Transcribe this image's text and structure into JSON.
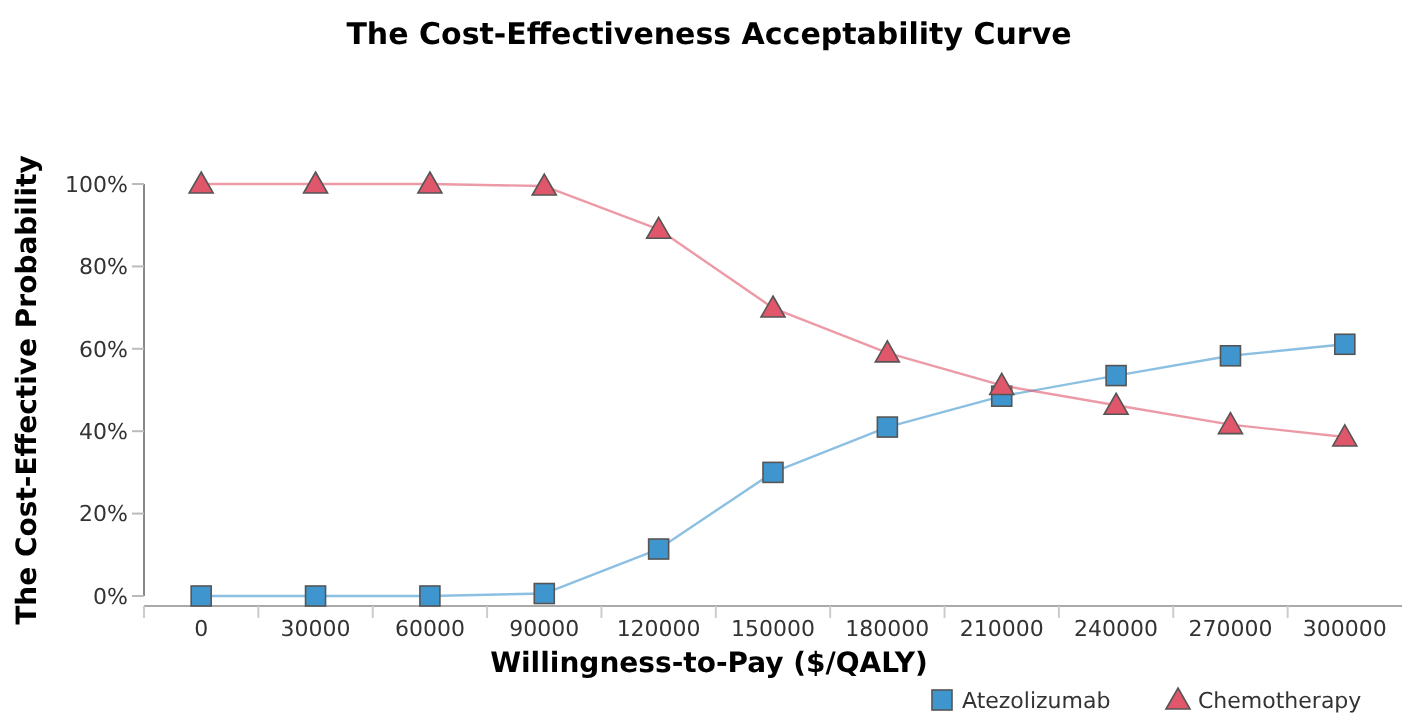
{
  "chart_data": {
    "type": "line",
    "title": "The Cost-Effectiveness Acceptability Curve",
    "xlabel": "Willingness-to-Pay ($/QALY)",
    "ylabel": "The Cost-Effective Probability",
    "categories": [
      "0",
      "30000",
      "60000",
      "90000",
      "120000",
      "150000",
      "180000",
      "210000",
      "240000",
      "270000",
      "300000"
    ],
    "ylim": [
      0,
      100
    ],
    "yticks": [
      {
        "value": 0,
        "label": "0%"
      },
      {
        "value": 20,
        "label": "20%"
      },
      {
        "value": 40,
        "label": "40%"
      },
      {
        "value": 60,
        "label": "60%"
      },
      {
        "value": 80,
        "label": "80%"
      },
      {
        "value": 100,
        "label": "100%"
      }
    ],
    "series": [
      {
        "name": "Atezolizumab",
        "color": "#3f96cf",
        "marker": "square",
        "values": [
          0,
          0,
          0,
          0.6,
          11.4,
          30,
          41,
          48.5,
          53.5,
          58.3,
          61.1
        ]
      },
      {
        "name": "Chemotherapy",
        "color": "#e0566a",
        "marker": "triangle",
        "values": [
          100,
          100,
          100,
          99.5,
          89,
          69.9,
          59,
          51.1,
          46.3,
          41.6,
          38.6
        ]
      }
    ],
    "legend": "bottom right",
    "grid": false
  }
}
